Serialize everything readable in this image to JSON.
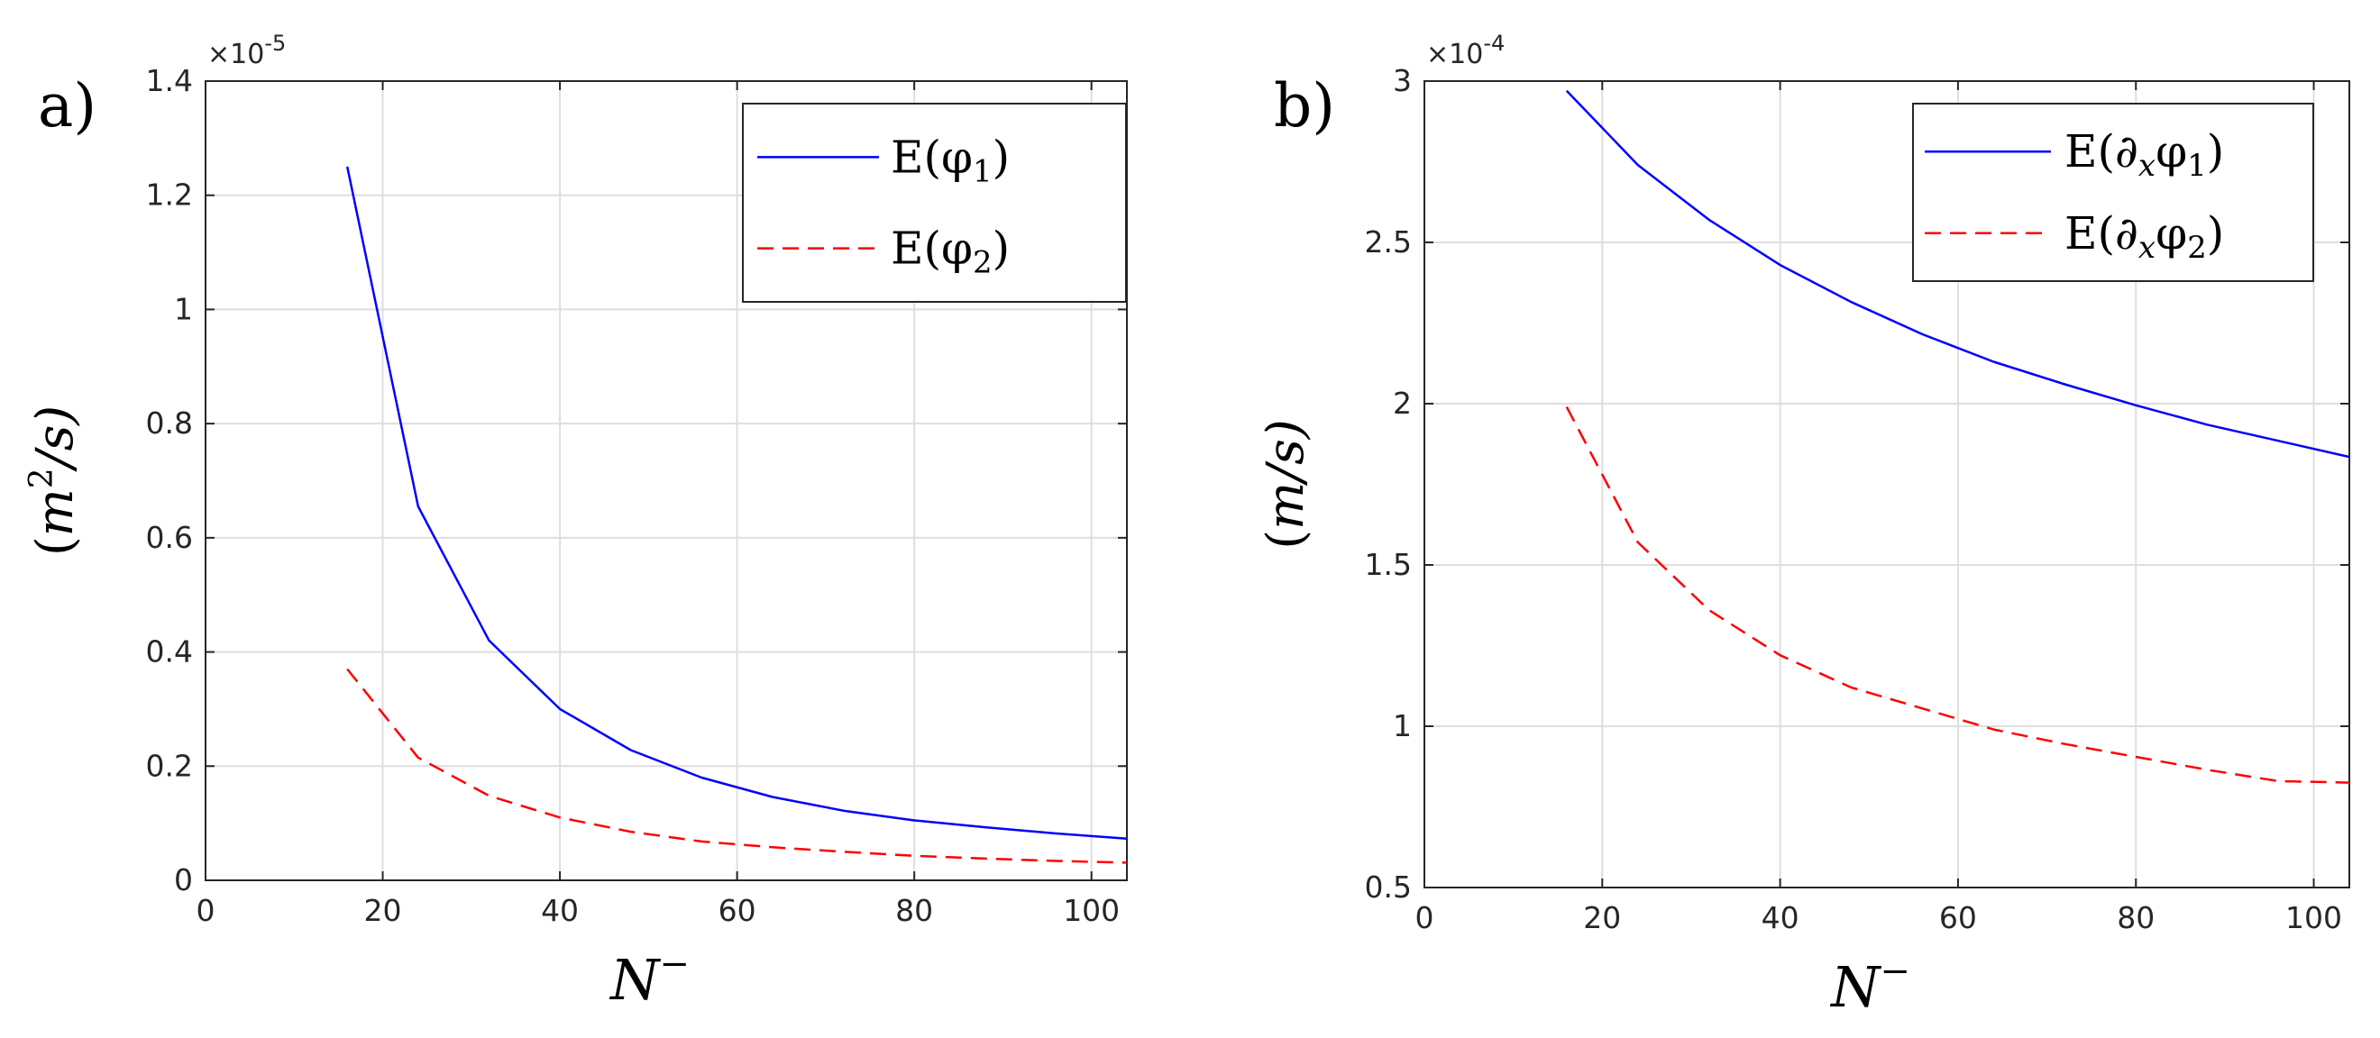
{
  "chart_data": [
    {
      "type": "line",
      "panel_label": "a)",
      "title": "",
      "xlabel_base": "N",
      "xlabel_sup": "−",
      "ylabel_text": "(m²/s)",
      "ylabel_parts": {
        "open": "(",
        "m": "m",
        "sup": "2",
        "rest": "/s)"
      },
      "xlim": [
        0,
        104
      ],
      "ylim": [
        0,
        1.4
      ],
      "xticks": [
        0,
        20,
        40,
        60,
        80,
        100
      ],
      "xtick_labels": [
        "0",
        "20",
        "40",
        "60",
        "80",
        "100"
      ],
      "yticks": [
        0,
        0.2,
        0.4,
        0.6,
        0.8,
        1.0,
        1.2,
        1.4
      ],
      "ytick_labels": [
        "0",
        "0.2",
        "0.4",
        "0.6",
        "0.8",
        "1",
        "1.2",
        "1.4"
      ],
      "y_exponent": "×10",
      "y_exponent_power": "-5",
      "grid": true,
      "legend_placement": "top-right",
      "series": [
        {
          "name": "E(φ1)",
          "legend_parts": {
            "pre": "E(φ",
            "sub": "1",
            "post": ")"
          },
          "color": "#0000ff",
          "style": "solid",
          "x": [
            16,
            24,
            32,
            40,
            48,
            56,
            64,
            72,
            80,
            88,
            96,
            104
          ],
          "values": [
            1.25,
            0.655,
            0.42,
            0.3,
            0.228,
            0.18,
            0.146,
            0.122,
            0.105,
            0.093,
            0.082,
            0.073
          ]
        },
        {
          "name": "E(φ2)",
          "legend_parts": {
            "pre": "E(φ",
            "sub": "2",
            "post": ")"
          },
          "color": "#ff0000",
          "style": "dashed",
          "x": [
            16,
            24,
            32,
            40,
            48,
            56,
            64,
            72,
            80,
            88,
            96,
            104
          ],
          "values": [
            0.37,
            0.215,
            0.148,
            0.11,
            0.085,
            0.068,
            0.058,
            0.05,
            0.043,
            0.038,
            0.034,
            0.031
          ]
        }
      ]
    },
    {
      "type": "line",
      "panel_label": "b)",
      "title": "",
      "xlabel_base": "N",
      "xlabel_sup": "−",
      "ylabel_text": "(m/s)",
      "ylabel_parts": {
        "open": "(",
        "m": "m",
        "sup": "",
        "rest": "/s)"
      },
      "xlim": [
        0,
        104
      ],
      "ylim": [
        0.5,
        3.0
      ],
      "xticks": [
        0,
        20,
        40,
        60,
        80,
        100
      ],
      "xtick_labels": [
        "0",
        "20",
        "40",
        "60",
        "80",
        "100"
      ],
      "yticks": [
        0.5,
        1.0,
        1.5,
        2.0,
        2.5,
        3.0
      ],
      "ytick_labels": [
        "0.5",
        "1",
        "1.5",
        "2",
        "2.5",
        "3"
      ],
      "y_exponent": "×10",
      "y_exponent_power": "-4",
      "grid": true,
      "legend_placement": "top-right",
      "series": [
        {
          "name": "E(∂xφ1)",
          "legend_parts": {
            "pre": "E(∂",
            "sub_a": "x",
            "mid": "φ",
            "sub": "1",
            "post": ")"
          },
          "color": "#0000ff",
          "style": "solid",
          "x": [
            16,
            24,
            32,
            40,
            48,
            56,
            64,
            72,
            80,
            88,
            96,
            104
          ],
          "values": [
            2.97,
            2.74,
            2.57,
            2.43,
            2.315,
            2.215,
            2.13,
            2.06,
            1.995,
            1.935,
            1.885,
            1.835
          ]
        },
        {
          "name": "E(∂xφ2)",
          "legend_parts": {
            "pre": "E(∂",
            "sub_a": "x",
            "mid": "φ",
            "sub": "2",
            "post": ")"
          },
          "color": "#ff0000",
          "style": "dashed",
          "x": [
            16,
            24,
            32,
            40,
            48,
            56,
            64,
            72,
            80,
            88,
            96,
            104
          ],
          "values": [
            1.99,
            1.57,
            1.36,
            1.22,
            1.12,
            1.055,
            0.99,
            0.945,
            0.905,
            0.865,
            0.83,
            0.825
          ]
        }
      ]
    }
  ]
}
